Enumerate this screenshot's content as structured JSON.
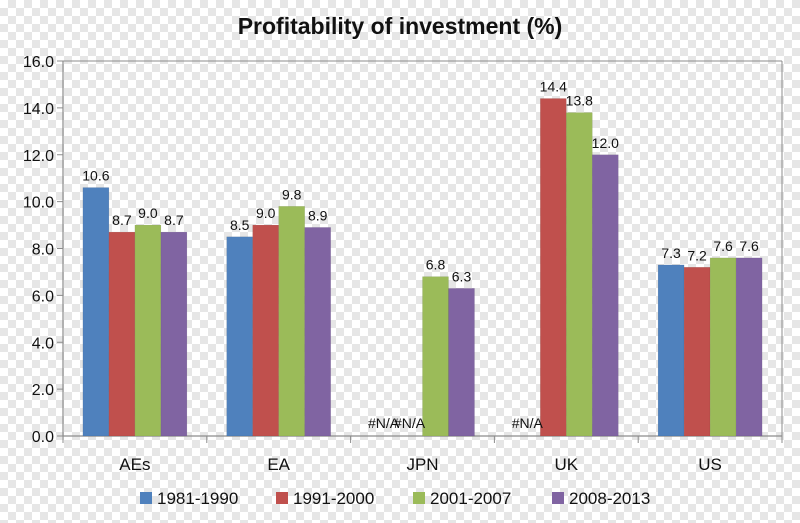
{
  "chart_data": {
    "type": "bar",
    "title": "Profitability of investment (%)",
    "xlabel": "",
    "ylabel": "",
    "ylim": [
      0,
      16
    ],
    "yticks": [
      "0.0",
      "2.0",
      "4.0",
      "6.0",
      "8.0",
      "10.0",
      "12.0",
      "14.0",
      "16.0"
    ],
    "grid": false,
    "legend_position": "bottom",
    "categories": [
      "AEs",
      "EA",
      "JPN",
      "UK",
      "US"
    ],
    "series": [
      {
        "name": "1981-1990",
        "color": "#4f81bd",
        "values": [
          10.6,
          8.5,
          null,
          null,
          7.3
        ],
        "labels": [
          "10.6",
          "8.5",
          "#N/A",
          "#N/A",
          "7.3"
        ]
      },
      {
        "name": "1991-2000",
        "color": "#c0504d",
        "values": [
          8.7,
          9.0,
          null,
          14.4,
          7.2
        ],
        "labels": [
          "8.7",
          "9.0",
          "#N/A",
          "14.4",
          "7.2"
        ]
      },
      {
        "name": "2001-2007",
        "color": "#9bbb59",
        "values": [
          9.0,
          9.8,
          6.8,
          13.8,
          7.6
        ],
        "labels": [
          "9.0",
          "9.8",
          "6.8",
          "13.8",
          "7.6"
        ]
      },
      {
        "name": "2008-2013",
        "color": "#8064a2",
        "values": [
          8.7,
          8.9,
          6.3,
          12.0,
          7.6
        ],
        "labels": [
          "8.7",
          "8.9",
          "6.3",
          "12.0",
          "7.6"
        ]
      }
    ]
  }
}
